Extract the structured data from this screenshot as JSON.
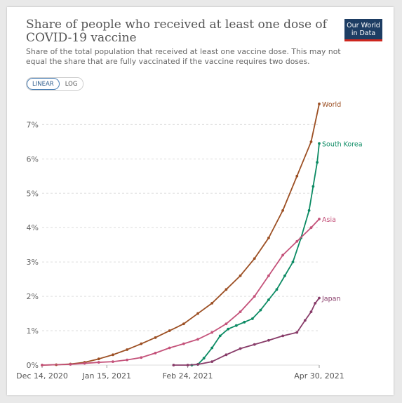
{
  "logo": {
    "line1": "Our World",
    "line2": "in Data"
  },
  "scale_toggle": {
    "linear_label": "LINEAR",
    "log_label": "LOG",
    "selected": "linear"
  },
  "chart_data": {
    "type": "line",
    "title": "Share of people who received at least one dose of COVID-19 vaccine",
    "subtitle": "Share of the total population that received at least one vaccine dose. This may not equal the share that are fully vaccinated if the vaccine requires two doses.",
    "xlim": [
      "2020-12-14",
      "2021-04-30"
    ],
    "ylim": [
      0,
      7.6
    ],
    "yticks": [
      0,
      1,
      2,
      3,
      4,
      5,
      6,
      7
    ],
    "ytick_labels": [
      "0%",
      "1%",
      "2%",
      "3%",
      "4%",
      "5%",
      "6%",
      "7%"
    ],
    "xticks": [
      "2020-12-14",
      "2021-01-15",
      "2021-02-24",
      "2021-04-30"
    ],
    "xtick_labels": [
      "Dec 14, 2020",
      "Jan 15, 2021",
      "Feb 24, 2021",
      "Apr 30, 2021"
    ],
    "grid": "horizontal-dashed",
    "legend": "inline-end-labels",
    "series": [
      {
        "name": "World",
        "color": "#9c4f23",
        "points": [
          [
            "2020-12-14",
            0.0
          ],
          [
            "2020-12-21",
            0.01
          ],
          [
            "2020-12-28",
            0.03
          ],
          [
            "2021-01-04",
            0.08
          ],
          [
            "2021-01-11",
            0.18
          ],
          [
            "2021-01-18",
            0.3
          ],
          [
            "2021-01-25",
            0.45
          ],
          [
            "2021-02-01",
            0.62
          ],
          [
            "2021-02-08",
            0.8
          ],
          [
            "2021-02-15",
            1.0
          ],
          [
            "2021-02-22",
            1.2
          ],
          [
            "2021-03-01",
            1.5
          ],
          [
            "2021-03-08",
            1.8
          ],
          [
            "2021-03-15",
            2.2
          ],
          [
            "2021-03-22",
            2.6
          ],
          [
            "2021-03-29",
            3.1
          ],
          [
            "2021-04-05",
            3.7
          ],
          [
            "2021-04-12",
            4.5
          ],
          [
            "2021-04-19",
            5.5
          ],
          [
            "2021-04-26",
            6.5
          ],
          [
            "2021-04-30",
            7.6
          ]
        ]
      },
      {
        "name": "South Korea",
        "color": "#0c8b64",
        "points": [
          [
            "2021-02-26",
            0.0
          ],
          [
            "2021-03-01",
            0.02
          ],
          [
            "2021-03-04",
            0.2
          ],
          [
            "2021-03-08",
            0.5
          ],
          [
            "2021-03-12",
            0.85
          ],
          [
            "2021-03-16",
            1.05
          ],
          [
            "2021-03-20",
            1.15
          ],
          [
            "2021-03-24",
            1.25
          ],
          [
            "2021-03-28",
            1.35
          ],
          [
            "2021-04-01",
            1.6
          ],
          [
            "2021-04-05",
            1.9
          ],
          [
            "2021-04-09",
            2.2
          ],
          [
            "2021-04-13",
            2.6
          ],
          [
            "2021-04-17",
            3.0
          ],
          [
            "2021-04-21",
            3.7
          ],
          [
            "2021-04-25",
            4.5
          ],
          [
            "2021-04-27",
            5.2
          ],
          [
            "2021-04-29",
            5.9
          ],
          [
            "2021-04-30",
            6.45
          ]
        ]
      },
      {
        "name": "Asia",
        "color": "#c4527a",
        "points": [
          [
            "2020-12-14",
            0.0
          ],
          [
            "2020-12-28",
            0.02
          ],
          [
            "2021-01-04",
            0.05
          ],
          [
            "2021-01-11",
            0.08
          ],
          [
            "2021-01-18",
            0.1
          ],
          [
            "2021-01-25",
            0.15
          ],
          [
            "2021-02-01",
            0.22
          ],
          [
            "2021-02-08",
            0.35
          ],
          [
            "2021-02-15",
            0.5
          ],
          [
            "2021-02-22",
            0.62
          ],
          [
            "2021-03-01",
            0.75
          ],
          [
            "2021-03-08",
            0.95
          ],
          [
            "2021-03-15",
            1.2
          ],
          [
            "2021-03-22",
            1.55
          ],
          [
            "2021-03-29",
            2.0
          ],
          [
            "2021-04-05",
            2.6
          ],
          [
            "2021-04-12",
            3.2
          ],
          [
            "2021-04-19",
            3.6
          ],
          [
            "2021-04-26",
            4.0
          ],
          [
            "2021-04-30",
            4.25
          ]
        ]
      },
      {
        "name": "Japan",
        "color": "#883c69",
        "points": [
          [
            "2021-02-17",
            0.0
          ],
          [
            "2021-02-24",
            0.0
          ],
          [
            "2021-03-01",
            0.02
          ],
          [
            "2021-03-08",
            0.1
          ],
          [
            "2021-03-15",
            0.3
          ],
          [
            "2021-03-22",
            0.48
          ],
          [
            "2021-03-29",
            0.6
          ],
          [
            "2021-04-05",
            0.72
          ],
          [
            "2021-04-12",
            0.85
          ],
          [
            "2021-04-19",
            0.95
          ],
          [
            "2021-04-23",
            1.3
          ],
          [
            "2021-04-26",
            1.55
          ],
          [
            "2021-04-28",
            1.8
          ],
          [
            "2021-04-30",
            1.95
          ]
        ]
      }
    ]
  }
}
